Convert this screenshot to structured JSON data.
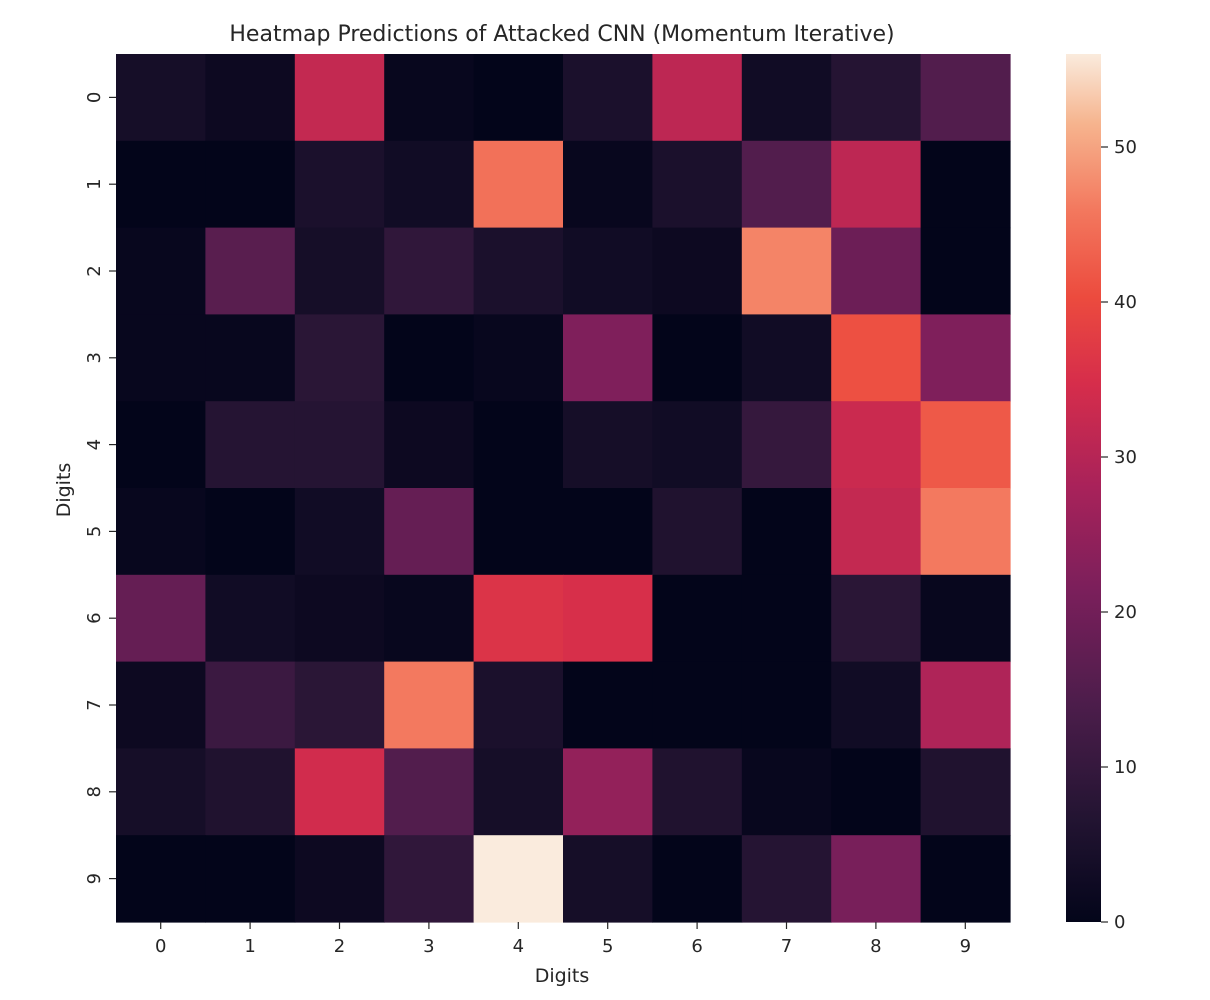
{
  "chart_data": {
    "type": "heatmap",
    "title": "Heatmap Predictions of Attacked CNN (Momentum Iterative)",
    "xlabel": "Digits",
    "ylabel": "Digits",
    "x_categories": [
      "0",
      "1",
      "2",
      "3",
      "4",
      "5",
      "6",
      "7",
      "8",
      "9"
    ],
    "y_categories": [
      "0",
      "1",
      "2",
      "3",
      "4",
      "5",
      "6",
      "7",
      "8",
      "9"
    ],
    "values": [
      [
        4,
        2,
        32,
        1,
        0,
        5,
        31,
        3,
        7,
        15
      ],
      [
        0,
        0,
        5,
        3,
        45,
        1,
        5,
        15,
        31,
        0
      ],
      [
        1,
        16,
        4,
        9,
        5,
        3,
        2,
        47,
        19,
        0
      ],
      [
        1,
        1,
        8,
        0,
        1,
        22,
        0,
        3,
        41,
        22
      ],
      [
        0,
        7,
        7,
        2,
        0,
        4,
        3,
        10,
        33,
        42
      ],
      [
        1,
        0,
        3,
        18,
        0,
        0,
        6,
        0,
        32,
        46
      ],
      [
        18,
        3,
        2,
        1,
        36,
        35,
        0,
        0,
        8,
        1
      ],
      [
        2,
        11,
        8,
        46,
        5,
        0,
        0,
        0,
        3,
        29
      ],
      [
        4,
        6,
        34,
        15,
        4,
        25,
        6,
        1,
        0,
        6
      ],
      [
        0,
        0,
        2,
        9,
        56,
        4,
        0,
        7,
        21,
        0
      ]
    ],
    "colorbar": {
      "range": [
        0,
        56
      ],
      "ticks": [
        0,
        10,
        20,
        30,
        40,
        50
      ]
    },
    "colormap_stops": [
      {
        "t": 0.0,
        "color": "#03051a"
      },
      {
        "t": 0.12,
        "color": "#231432"
      },
      {
        "t": 0.25,
        "color": "#4c1d4b"
      },
      {
        "t": 0.38,
        "color": "#7a1f5b"
      },
      {
        "t": 0.5,
        "color": "#a8225a"
      },
      {
        "t": 0.62,
        "color": "#d62d4b"
      },
      {
        "t": 0.72,
        "color": "#ec4b3e"
      },
      {
        "t": 0.82,
        "color": "#f3785e"
      },
      {
        "t": 0.92,
        "color": "#f6b48e"
      },
      {
        "t": 1.0,
        "color": "#faebdd"
      }
    ]
  }
}
